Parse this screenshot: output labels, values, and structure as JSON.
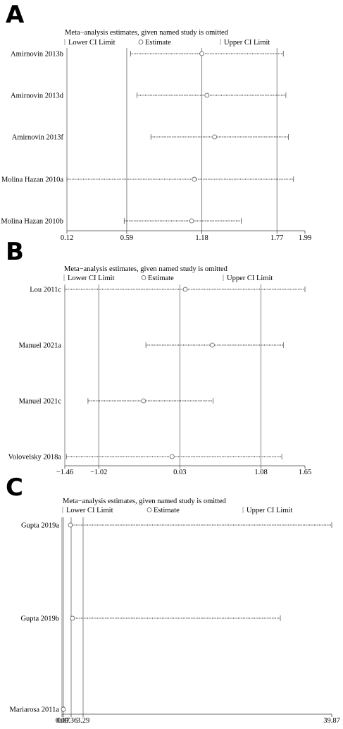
{
  "legend": {
    "title": "Meta−analysis estimates, given named study is omitted",
    "lower": "Lower CI Limit",
    "estimate": "Estimate",
    "upper": "Upper CI Limit"
  },
  "chart_data": [
    {
      "type": "forest",
      "panel_label": "A",
      "legend_title": "Meta−analysis estimates, given named study is omitted",
      "studies": [
        {
          "name": "Amirnovin 2013b",
          "lower": 0.62,
          "estimate": 1.18,
          "upper": 1.82
        },
        {
          "name": "Amirnovin 2013d",
          "lower": 0.67,
          "estimate": 1.22,
          "upper": 1.84
        },
        {
          "name": "Amirnovin 2013f",
          "lower": 0.78,
          "estimate": 1.28,
          "upper": 1.86
        },
        {
          "name": "Molina Hazan 2010a",
          "lower": 0.12,
          "estimate": 1.12,
          "upper": 1.9
        },
        {
          "name": "Molina Hazan 2010b",
          "lower": 0.57,
          "estimate": 1.1,
          "upper": 1.49
        }
      ],
      "x_ticks": [
        0.12,
        0.59,
        1.18,
        1.77,
        1.99
      ],
      "x_tick_labels": [
        "0.12",
        "0.59",
        "1.18",
        "1.77",
        "1.99"
      ],
      "reference_lines": [
        0.59,
        1.18,
        1.77
      ],
      "xlim": [
        0.12,
        1.99
      ]
    },
    {
      "type": "forest",
      "panel_label": "B",
      "legend_title": "Meta−analysis estimates, given named study is omitted",
      "studies": [
        {
          "name": "Lou 2011c",
          "lower": -1.46,
          "estimate": 0.1,
          "upper": 1.65
        },
        {
          "name": "Manuel 2021a",
          "lower": -0.41,
          "estimate": 0.45,
          "upper": 1.37
        },
        {
          "name": "Manuel 2021c",
          "lower": -1.16,
          "estimate": -0.44,
          "upper": 0.46
        },
        {
          "name": "Volovelsky 2018a",
          "lower": -1.44,
          "estimate": -0.07,
          "upper": 1.35
        }
      ],
      "x_ticks": [
        -1.46,
        -1.02,
        0.03,
        1.08,
        1.65
      ],
      "x_tick_labels": [
        "−1.46",
        "−1.02",
        "0.03",
        "1.08",
        "1.65"
      ],
      "reference_lines": [
        -1.02,
        0.03,
        1.08
      ],
      "xlim": [
        -1.46,
        1.65
      ]
    },
    {
      "type": "forest",
      "panel_label": "C",
      "legend_title": "Meta−analysis estimates, given named study is omitted",
      "studies": [
        {
          "name": "Gupta 2019a",
          "lower": 0.36,
          "estimate": 0.75,
          "upper": 39.87
        },
        {
          "name": "Gupta 2019b",
          "lower": 0.36,
          "estimate": 1.1,
          "upper": 29.8
        },
        {
          "name": "Mariarosa 2011a",
          "lower": 0.05,
          "estimate": 0.07,
          "upper": 0.09
        }
      ],
      "x_ticks": [
        0.05,
        0.07,
        0.36,
        3.29,
        39.87
      ],
      "x_tick_labels": [
        "0.05",
        "0.07",
        "0.36",
        "3.29",
        "39.87"
      ],
      "reference_lines": [
        0.07,
        0.36,
        3.29
      ],
      "xlim": [
        0.05,
        39.87
      ]
    }
  ]
}
